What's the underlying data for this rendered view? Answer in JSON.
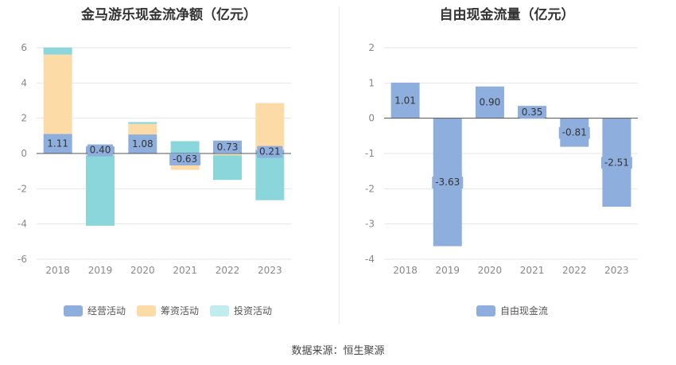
{
  "source": "数据来源：恒生聚源",
  "colors": {
    "operating": "#8eaede",
    "financing": "#fddba6",
    "investing": "#8bd6da",
    "free_cash_flow": "#8eaede",
    "legend_investing": "#c2ecee"
  },
  "chart_data": [
    {
      "type": "bar",
      "stacked": true,
      "title": "金马游乐现金流净额（亿元）",
      "categories": [
        "2018",
        "2019",
        "2020",
        "2021",
        "2022",
        "2023"
      ],
      "ylim": [
        -6,
        6
      ],
      "yticks": [
        6,
        4,
        2,
        0,
        -2,
        -4,
        -6
      ],
      "grid": true,
      "legend": "bottom",
      "series": [
        {
          "name": "经营活动",
          "key": "operating",
          "values": [
            1.11,
            0.4,
            1.08,
            -0.63,
            0.73,
            0.21
          ]
        },
        {
          "name": "筹资活动",
          "key": "financing",
          "values": [
            4.5,
            -0.1,
            0.6,
            -0.3,
            -0.1,
            2.65
          ]
        },
        {
          "name": "投资活动",
          "key": "investing",
          "values": [
            0.4,
            -4.0,
            0.1,
            0.7,
            -1.4,
            -2.65
          ]
        }
      ],
      "data_labels": [
        "1.11",
        "0.40",
        "1.08",
        "-0.63",
        "0.73",
        "0.21"
      ]
    },
    {
      "type": "bar",
      "title": "自由现金流量（亿元）",
      "categories": [
        "2018",
        "2019",
        "2020",
        "2021",
        "2022",
        "2023"
      ],
      "ylim": [
        -4,
        2
      ],
      "yticks": [
        2,
        1,
        0,
        -1,
        -2,
        -3,
        -4
      ],
      "grid": true,
      "legend": "bottom",
      "series": [
        {
          "name": "自由现金流",
          "key": "free_cash_flow",
          "values": [
            1.01,
            -3.63,
            0.9,
            0.35,
            -0.81,
            -2.51
          ]
        }
      ],
      "data_labels": [
        "1.01",
        "-3.63",
        "0.90",
        "0.35",
        "-0.81",
        "-2.51"
      ]
    }
  ]
}
